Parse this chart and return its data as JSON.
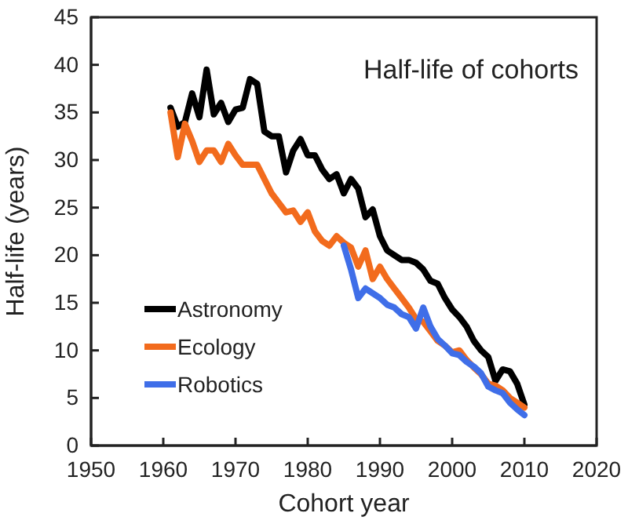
{
  "chart_data": {
    "type": "line",
    "title": "Half-life of cohorts",
    "xlabel": "Cohort year",
    "ylabel": "Half-life (years)",
    "xlim": [
      1950,
      2020
    ],
    "xticks": [
      1950,
      1960,
      1970,
      1980,
      1990,
      2000,
      2010,
      2020
    ],
    "ylim": [
      0,
      45
    ],
    "yticks": [
      0,
      5,
      10,
      15,
      20,
      25,
      30,
      35,
      40,
      45
    ],
    "grid": false,
    "legend": "bottom left",
    "marker": "none",
    "line_style": "solid",
    "series": [
      {
        "name": "Astronomy",
        "color": "#000000",
        "x": [
          1961,
          1962,
          1963,
          1964,
          1965,
          1966,
          1967,
          1968,
          1969,
          1970,
          1971,
          1972,
          1973,
          1974,
          1975,
          1976,
          1977,
          1978,
          1979,
          1980,
          1981,
          1982,
          1983,
          1984,
          1985,
          1986,
          1987,
          1988,
          1989,
          1990,
          1991,
          1992,
          1993,
          1994,
          1995,
          1996,
          1997,
          1998,
          1999,
          2000,
          2001,
          2002,
          2003,
          2004,
          2005,
          2006,
          2007,
          2008,
          2009,
          2010
        ],
        "values": [
          35.5,
          33.5,
          34,
          37,
          34.5,
          39.5,
          34.8,
          36,
          34,
          35.3,
          35.5,
          38.5,
          38,
          33,
          32.5,
          32.5,
          28.7,
          31,
          32.2,
          30.5,
          30.5,
          29,
          28,
          28.5,
          26.5,
          28,
          27,
          24,
          24.8,
          22,
          20.5,
          20,
          19.5,
          19.5,
          19.2,
          18.5,
          17.3,
          17,
          15.5,
          14.3,
          13.5,
          12.5,
          11,
          10,
          9.3,
          6.8,
          8,
          7.8,
          6.5,
          4.3
        ]
      },
      {
        "name": "Ecology",
        "color": "#f26b1d",
        "x": [
          1961,
          1962,
          1963,
          1964,
          1965,
          1966,
          1967,
          1968,
          1969,
          1970,
          1971,
          1972,
          1973,
          1974,
          1975,
          1976,
          1977,
          1978,
          1979,
          1980,
          1981,
          1982,
          1983,
          1984,
          1985,
          1986,
          1987,
          1988,
          1989,
          1990,
          1991,
          1992,
          1993,
          1994,
          1995,
          1996,
          1997,
          1998,
          1999,
          2000,
          2001,
          2002,
          2003,
          2004,
          2005,
          2006,
          2007,
          2008,
          2009,
          2010
        ],
        "values": [
          35,
          30.3,
          33.8,
          32,
          29.8,
          31,
          31,
          29.8,
          31.7,
          30.5,
          29.5,
          29.5,
          29.5,
          28,
          26.5,
          25.5,
          24.5,
          24.7,
          23.5,
          24.5,
          22.5,
          21.5,
          21,
          22,
          21.3,
          20.8,
          18.8,
          20.5,
          17.5,
          18.8,
          17.5,
          16.5,
          15.5,
          14.5,
          13.3,
          13,
          12,
          11,
          10.5,
          9.8,
          10,
          9,
          8.2,
          7.5,
          6.5,
          6.3,
          5.8,
          5,
          4.5,
          4
        ]
      },
      {
        "name": "Robotics",
        "color": "#3f6ee8",
        "x": [
          1985,
          1986,
          1987,
          1988,
          1989,
          1990,
          1991,
          1992,
          1993,
          1994,
          1995,
          1996,
          1997,
          1998,
          1999,
          2000,
          2001,
          2002,
          2003,
          2004,
          2005,
          2006,
          2007,
          2008,
          2009,
          2010
        ],
        "values": [
          21,
          18.5,
          15.5,
          16.5,
          16,
          15.5,
          14.8,
          14.5,
          13.8,
          13.5,
          12.3,
          14.5,
          12.5,
          11.2,
          10.5,
          9.7,
          9.5,
          8.8,
          8.3,
          7.6,
          6.2,
          5.8,
          5.5,
          4.5,
          3.8,
          3.2
        ]
      }
    ]
  }
}
